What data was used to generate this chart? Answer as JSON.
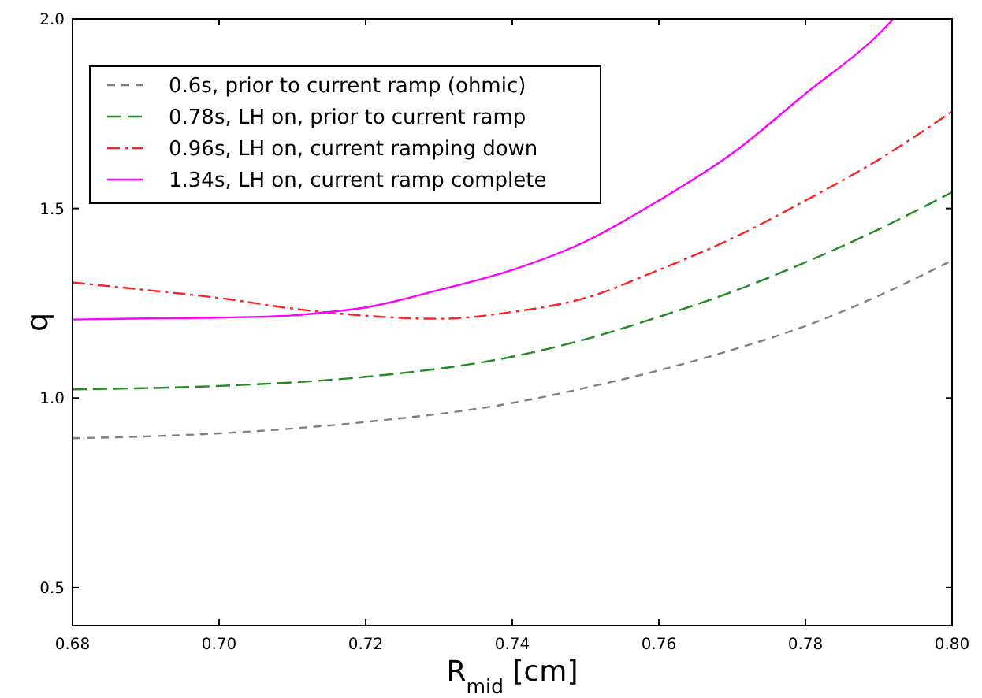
{
  "chart_data": {
    "type": "line",
    "xlabel": "R$_{mid}$ [cm]",
    "ylabel": "q",
    "xlim": [
      0.68,
      0.8
    ],
    "ylim": [
      0.4,
      2.0
    ],
    "xticks": [
      {
        "value": 0.68,
        "label": "0.68"
      },
      {
        "value": 0.7,
        "label": "0.70"
      },
      {
        "value": 0.72,
        "label": "0.72"
      },
      {
        "value": 0.74,
        "label": "0.74"
      },
      {
        "value": 0.76,
        "label": "0.76"
      },
      {
        "value": 0.78,
        "label": "0.78"
      },
      {
        "value": 0.8,
        "label": "0.80"
      }
    ],
    "yticks": [
      {
        "value": 0.5,
        "label": "0.5"
      },
      {
        "value": 1.0,
        "label": "1.0"
      },
      {
        "value": 1.5,
        "label": "1.5"
      },
      {
        "value": 2.0,
        "label": "2.0"
      }
    ],
    "grid": false,
    "legend": "top left",
    "marker": "none",
    "series": [
      {
        "name": "0.6s, prior to current ramp (ohmic)",
        "color": "#808080",
        "line_style": "dashed",
        "x": [
          0.68,
          0.7,
          0.72,
          0.74,
          0.75,
          0.76,
          0.77,
          0.78,
          0.79,
          0.8
        ],
        "values": [
          0.894,
          0.907,
          0.937,
          0.987,
          1.027,
          1.073,
          1.127,
          1.19,
          1.27,
          1.363
        ]
      },
      {
        "name": "0.78s, LH on, prior to  current ramp",
        "color": "#228b22",
        "line_style": "dashed",
        "x": [
          0.68,
          0.7,
          0.72,
          0.74,
          0.75,
          0.76,
          0.77,
          0.78,
          0.79,
          0.8
        ],
        "values": [
          1.023,
          1.032,
          1.056,
          1.109,
          1.155,
          1.214,
          1.28,
          1.358,
          1.445,
          1.543
        ]
      },
      {
        "name": "0.96s, LH on, current ramping down",
        "color": "#ff2020",
        "line_style": "dashed",
        "x": [
          0.68,
          0.69,
          0.7,
          0.71,
          0.72,
          0.73,
          0.74,
          0.75,
          0.76,
          0.77,
          0.78,
          0.79,
          0.8
        ],
        "values": [
          1.305,
          1.285,
          1.264,
          1.236,
          1.217,
          1.209,
          1.227,
          1.264,
          1.338,
          1.421,
          1.521,
          1.629,
          1.756
        ]
      },
      {
        "name": "1.34s, LH on, current ramp complete",
        "color": "#ff00ff",
        "line_style": "solid",
        "x": [
          0.68,
          0.69,
          0.7,
          0.71,
          0.715,
          0.72,
          0.73,
          0.74,
          0.75,
          0.76,
          0.77,
          0.78,
          0.79,
          0.792
        ],
        "values": [
          1.207,
          1.21,
          1.212,
          1.218,
          1.227,
          1.239,
          1.285,
          1.338,
          1.413,
          1.521,
          1.645,
          1.803,
          1.96,
          2.0
        ]
      }
    ]
  }
}
